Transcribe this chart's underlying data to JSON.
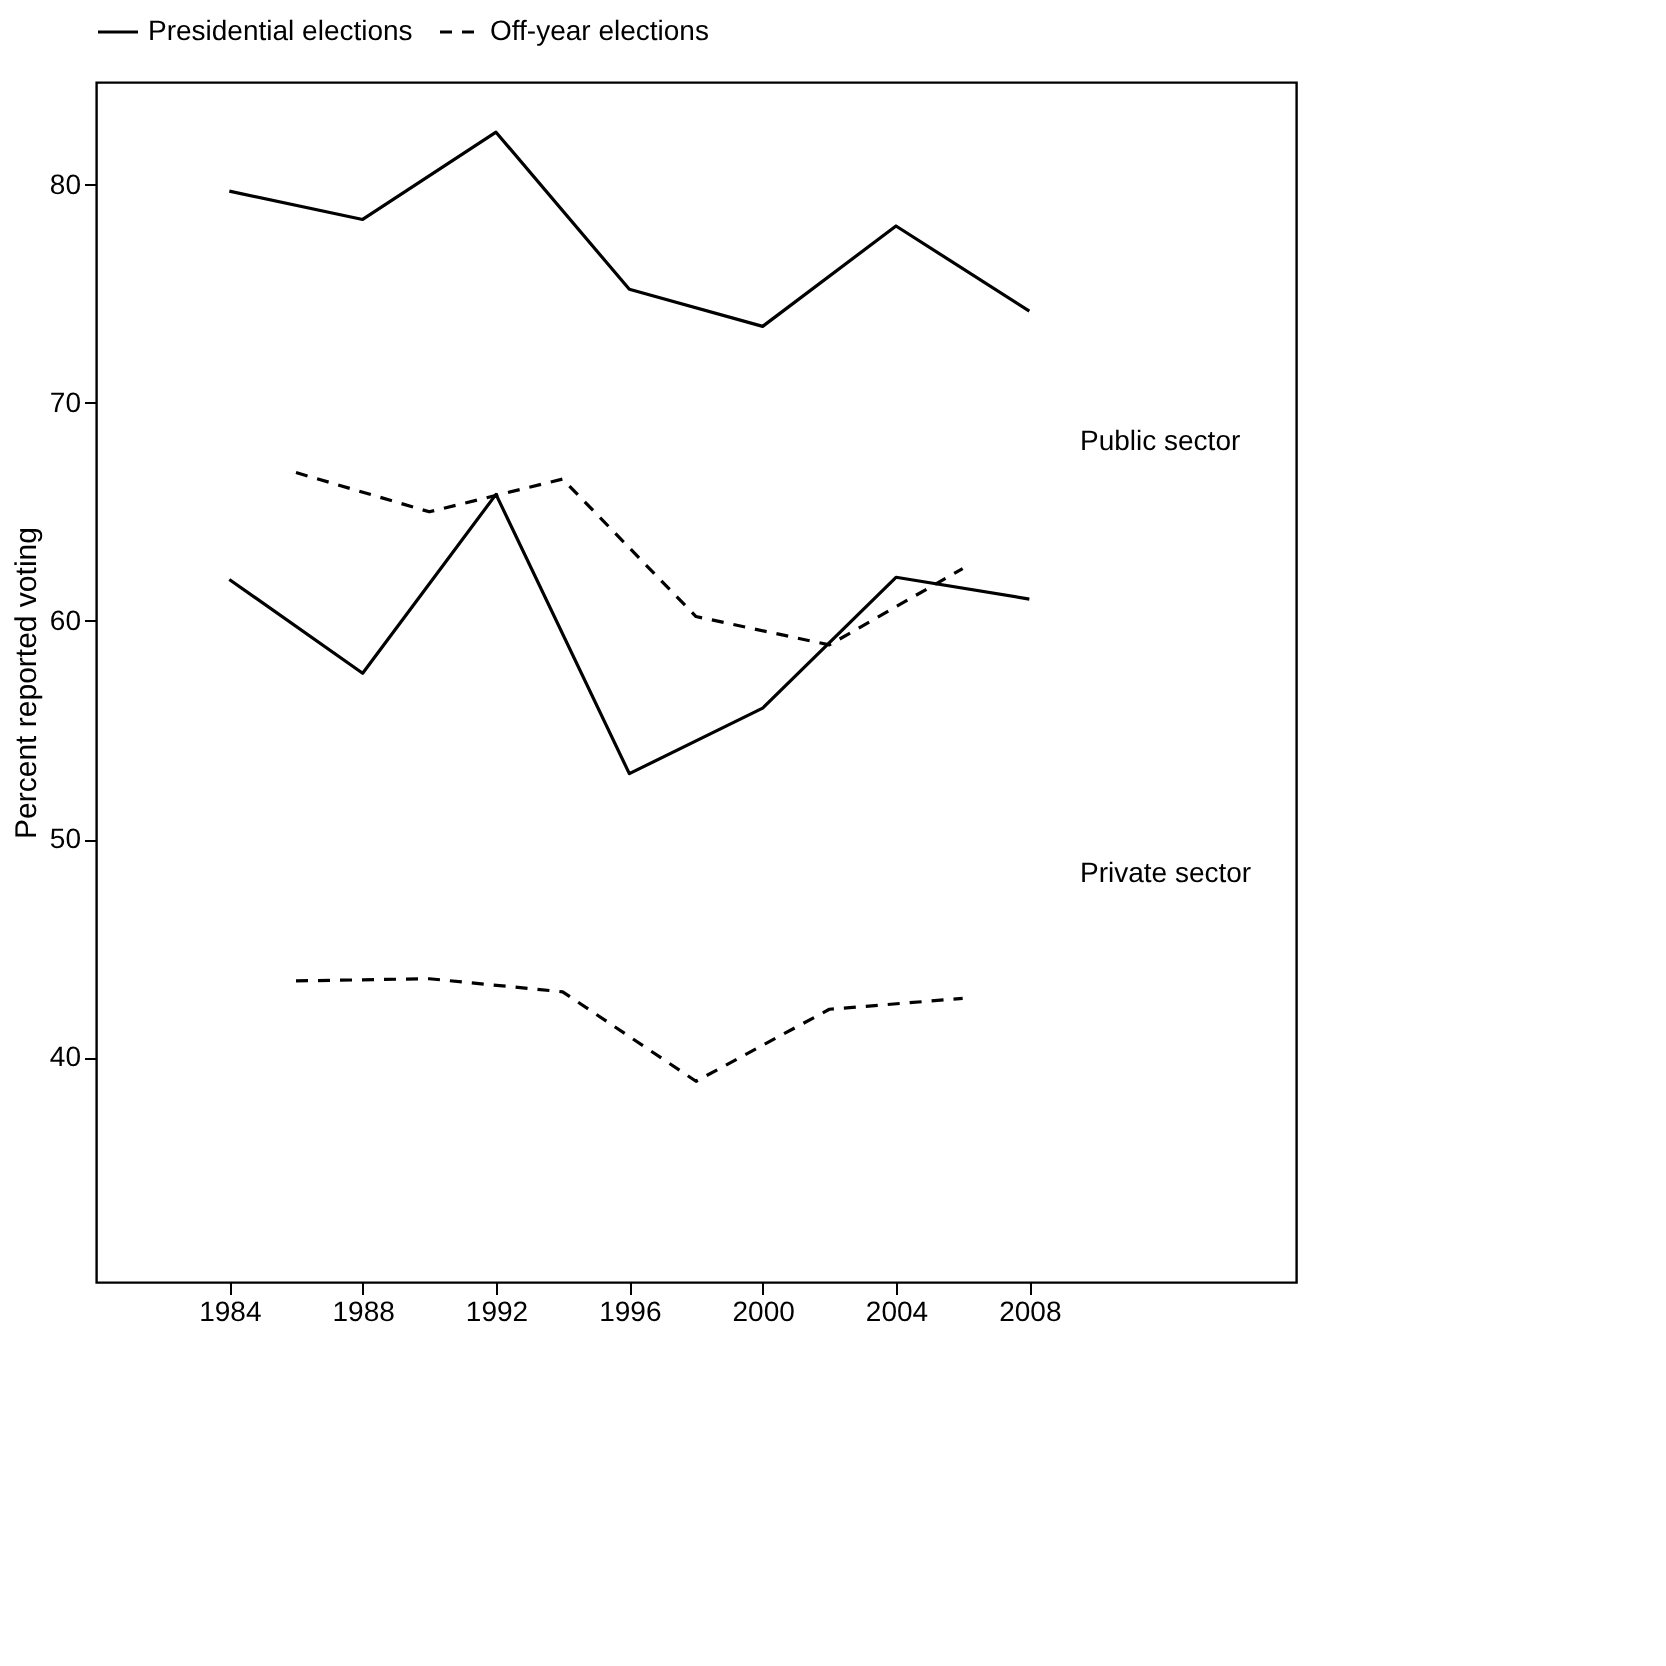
{
  "chart_data": {
    "type": "line",
    "ylabel": "Percent reported voting",
    "xlim": [
      1980,
      2016
    ],
    "ylim": [
      29.7,
      84.7
    ],
    "xticks": [
      1984,
      1988,
      1992,
      1996,
      2000,
      2004,
      2008
    ],
    "yticks": [
      40,
      50,
      60,
      70,
      80
    ],
    "grid": false,
    "legend": "top",
    "marker": "none",
    "series": [
      {
        "name": "Presidential elections",
        "color": "#000000",
        "line_style": "solid",
        "x": [
          1984,
          1988,
          1992,
          1996,
          2000,
          2004,
          2008
        ],
        "values": [
          79.7,
          78.4,
          82.4,
          75.2,
          73.5,
          78.1,
          74.2
        ]
      },
      {
        "color": "#000000",
        "line_style": "solid",
        "x": [
          1984,
          1988,
          1992,
          1996,
          2000,
          2004,
          2008
        ],
        "values": [
          61.9,
          57.6,
          65.8,
          53.0,
          56.0,
          62.0,
          61.0
        ]
      },
      {
        "name": "Off-year elections",
        "color": "#000000",
        "line_style": "dashed",
        "x": [
          1986,
          1990,
          1994,
          1998,
          2002,
          2006
        ],
        "values": [
          66.8,
          65.0,
          66.5,
          60.2,
          58.9,
          62.4
        ]
      },
      {
        "color": "#000000",
        "line_style": "dashed",
        "x": [
          1986,
          1990,
          1994,
          1998,
          2002,
          2006
        ],
        "values": [
          43.5,
          43.6,
          43.0,
          38.9,
          42.2,
          42.7
        ]
      }
    ],
    "annotations": [
      "Public sector",
      "Private sector"
    ]
  }
}
